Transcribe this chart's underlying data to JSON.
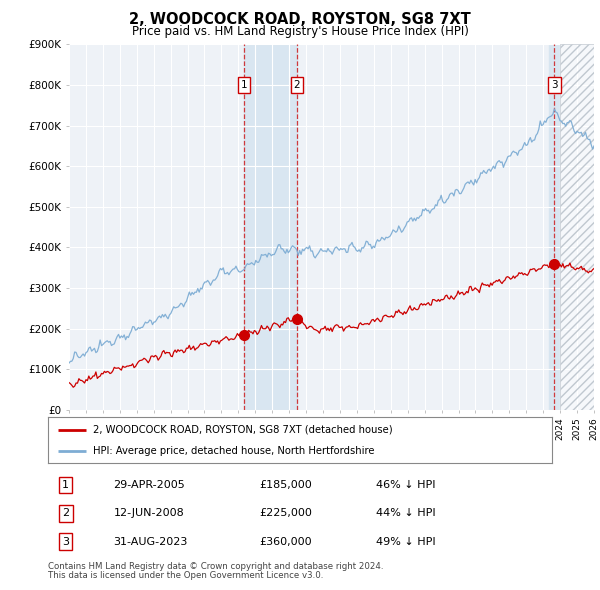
{
  "title": "2, WOODCOCK ROAD, ROYSTON, SG8 7XT",
  "subtitle": "Price paid vs. HM Land Registry's House Price Index (HPI)",
  "ylim": [
    0,
    900000
  ],
  "yticks": [
    0,
    100000,
    200000,
    300000,
    400000,
    500000,
    600000,
    700000,
    800000,
    900000
  ],
  "ytick_labels": [
    "£0",
    "£100K",
    "£200K",
    "£300K",
    "£400K",
    "£500K",
    "£600K",
    "£700K",
    "£800K",
    "£900K"
  ],
  "xlim": [
    1995,
    2026
  ],
  "hpi_color": "#7eadd4",
  "property_color": "#cc0000",
  "transactions": [
    {
      "label": "1",
      "date": "29-APR-2005",
      "date_num": 2005.32,
      "price": 185000,
      "hpi_pct": "46%"
    },
    {
      "label": "2",
      "date": "12-JUN-2008",
      "date_num": 2008.45,
      "price": 225000,
      "hpi_pct": "44%"
    },
    {
      "label": "3",
      "date": "31-AUG-2023",
      "date_num": 2023.66,
      "price": 360000,
      "hpi_pct": "49%"
    }
  ],
  "legend_property": "2, WOODCOCK ROAD, ROYSTON, SG8 7XT (detached house)",
  "legend_hpi": "HPI: Average price, detached house, North Hertfordshire",
  "footnote1": "Contains HM Land Registry data © Crown copyright and database right 2024.",
  "footnote2": "This data is licensed under the Open Government Licence v3.0.",
  "background_color": "#ffffff",
  "plot_bg_color": "#eef2f7",
  "grid_color": "#ffffff",
  "shade_color": "#d6e4f0",
  "hatch_start": 2024.0
}
